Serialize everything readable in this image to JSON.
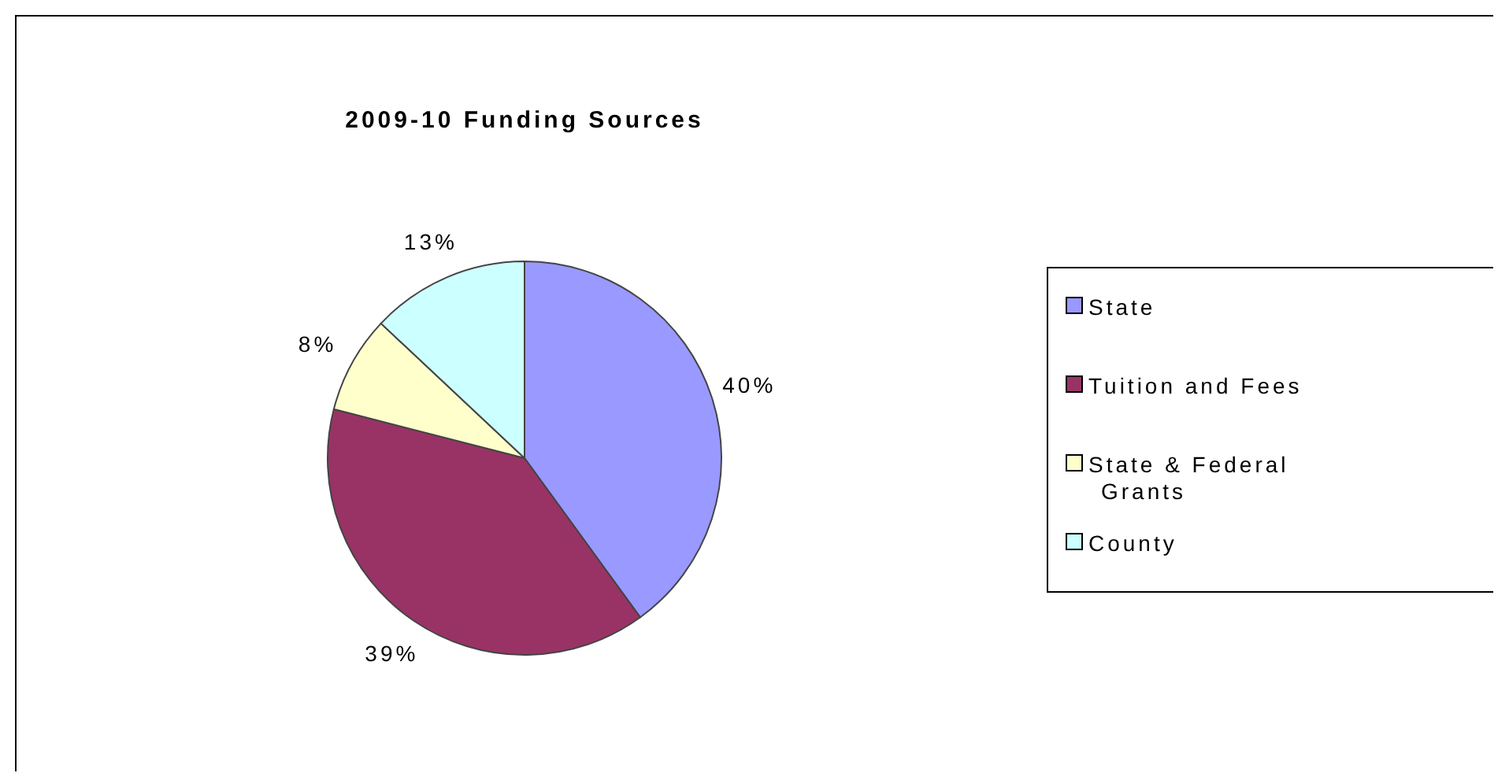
{
  "chart_data": {
    "type": "pie",
    "title": "2009-10 Funding Sources",
    "categories": [
      "State",
      "Tuition and Fees",
      "State & Federal Grants",
      "County"
    ],
    "values": [
      40,
      39,
      8,
      13
    ],
    "colors": [
      "#9999ff",
      "#993366",
      "#ffffcc",
      "#ccffff"
    ],
    "value_labels": [
      "40%",
      "39%",
      "8%",
      "13%"
    ],
    "legend": "right"
  }
}
